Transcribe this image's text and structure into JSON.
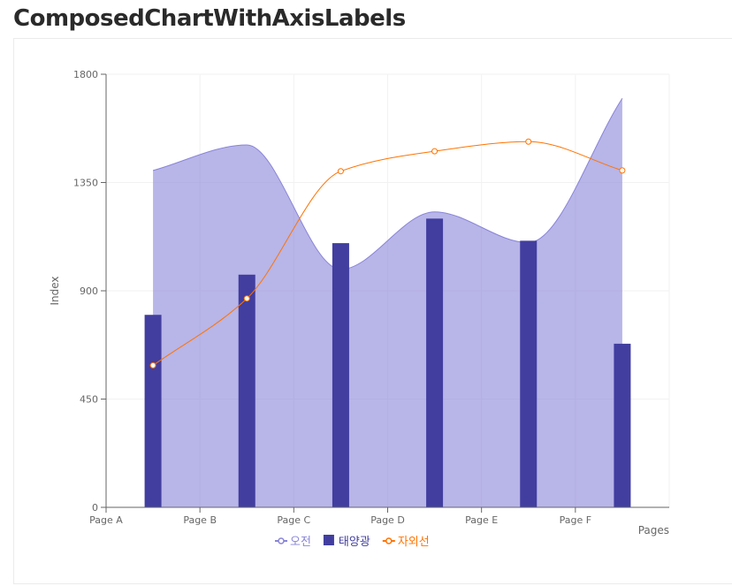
{
  "page": {
    "title": "ComposedChartWithAxisLabels"
  },
  "chart_data": {
    "type": "composed",
    "categories": [
      "Page A",
      "Page B",
      "Page C",
      "Page D",
      "Page E",
      "Page F"
    ],
    "xlabel": "Pages",
    "ylabel": "Index",
    "ylim": [
      0,
      1800
    ],
    "yticks": [
      0,
      450,
      900,
      1350,
      1800
    ],
    "grid": true,
    "legend_position": "bottom-center",
    "series": [
      {
        "name": "오전",
        "type": "area",
        "color": "#8884d8",
        "values": [
          1400,
          1506,
          989,
          1228,
          1100,
          1700
        ]
      },
      {
        "name": "태양광",
        "type": "bar",
        "color": "#413ea0",
        "values": [
          800,
          967,
          1098,
          1200,
          1108,
          680
        ]
      },
      {
        "name": "자외선",
        "type": "line",
        "color": "#ff7300",
        "values": [
          590,
          868,
          1397,
          1480,
          1520,
          1400
        ]
      }
    ]
  }
}
